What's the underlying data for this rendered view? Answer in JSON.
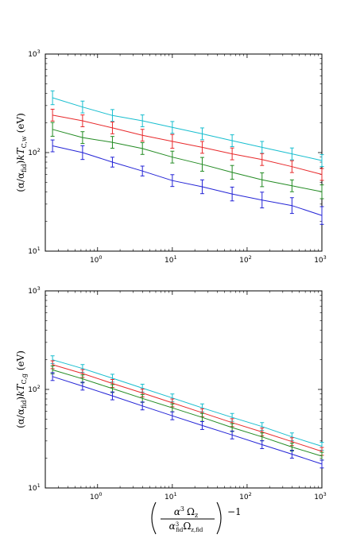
{
  "colors": {
    "cyan": "#17becf",
    "red": "#e8292b",
    "green": "#238b23",
    "blue": "#2424d6"
  },
  "chart_data": [
    {
      "type": "line",
      "ylabel": "(α/α_fid) kT_C,w (eV)",
      "xlabel": "",
      "xscale": "log",
      "yscale": "log",
      "xlim": [
        0.2,
        1000
      ],
      "ylim": [
        10,
        1000
      ],
      "x": [
        0.25,
        0.63,
        1.58,
        3.98,
        10,
        25.1,
        63.1,
        158.5,
        398,
        1000
      ],
      "series": [
        {
          "color": "cyan",
          "values": [
            360,
            290,
            238,
            210,
            180,
            155,
            132,
            113,
            97,
            83
          ],
          "err": [
            0.07,
            0.06,
            0.06,
            0.06,
            0.06,
            0.06,
            0.06,
            0.06,
            0.06,
            0.06
          ]
        },
        {
          "color": "red",
          "values": [
            240,
            210,
            178,
            150,
            130,
            113,
            97,
            85,
            72,
            60
          ],
          "err": [
            0.06,
            0.06,
            0.06,
            0.06,
            0.07,
            0.06,
            0.06,
            0.06,
            0.06,
            0.06
          ]
        },
        {
          "color": "green",
          "values": [
            172,
            142,
            127,
            110,
            90,
            76,
            63,
            53,
            46,
            40
          ],
          "err": [
            0.07,
            0.06,
            0.06,
            0.06,
            0.06,
            0.07,
            0.07,
            0.07,
            0.06,
            0.07
          ]
        },
        {
          "color": "blue",
          "values": [
            117,
            100,
            80,
            65,
            52,
            45,
            38,
            33,
            29,
            23
          ],
          "err": [
            0.06,
            0.07,
            0.05,
            0.05,
            0.06,
            0.07,
            0.07,
            0.08,
            0.08,
            0.09
          ]
        }
      ]
    },
    {
      "type": "line",
      "ylabel": "(α/α_fid) kT_C,g (eV)",
      "xlabel": "(α³ Ω_z / α³_fid Ω_z,fid)^−1",
      "xscale": "log",
      "yscale": "log",
      "xlim": [
        0.2,
        1000
      ],
      "ylim": [
        10,
        1000
      ],
      "x": [
        0.25,
        0.63,
        1.58,
        3.98,
        10,
        25.1,
        63.1,
        158.5,
        398,
        1000
      ],
      "series": [
        {
          "color": "cyan",
          "values": [
            200,
            163,
            130,
            103,
            82,
            65,
            52,
            42,
            33,
            26.5
          ],
          "err": [
            0.04,
            0.04,
            0.04,
            0.04,
            0.04,
            0.04,
            0.04,
            0.04,
            0.04,
            0.04
          ]
        },
        {
          "color": "red",
          "values": [
            178,
            145,
            115,
            92,
            73,
            58,
            46,
            37,
            29.5,
            23.5
          ],
          "err": [
            0.04,
            0.04,
            0.04,
            0.04,
            0.04,
            0.04,
            0.04,
            0.04,
            0.04,
            0.04
          ]
        },
        {
          "color": "green",
          "values": [
            158,
            128,
            102,
            81,
            65,
            52,
            41,
            33,
            26,
            21
          ],
          "err": [
            0.04,
            0.04,
            0.04,
            0.04,
            0.04,
            0.04,
            0.04,
            0.04,
            0.04,
            0.04
          ]
        },
        {
          "color": "blue",
          "values": [
            135,
            108,
            86,
            68,
            54,
            43,
            34.5,
            27.5,
            22,
            17.5
          ],
          "err": [
            0.04,
            0.04,
            0.04,
            0.04,
            0.04,
            0.04,
            0.04,
            0.04,
            0.04,
            0.04
          ]
        }
      ]
    }
  ],
  "ticks": {
    "x": [
      {
        "value": 1,
        "mant": "10",
        "exp": "0"
      },
      {
        "value": 10,
        "mant": "10",
        "exp": "1"
      },
      {
        "value": 100,
        "mant": "10",
        "exp": "2"
      },
      {
        "value": 1000,
        "mant": "10",
        "exp": "3"
      }
    ],
    "y": [
      {
        "value": 10,
        "mant": "10",
        "exp": "1"
      },
      {
        "value": 100,
        "mant": "10",
        "exp": "2"
      },
      {
        "value": 1000,
        "mant": "10",
        "exp": "3"
      }
    ]
  },
  "labels": {
    "top_ylabel": {
      "pre": "(α/α",
      "sub1": "fid",
      "mid": ")",
      "k": "kT",
      "sub2": "C,w",
      "post": " (eV)"
    },
    "bot_ylabel": {
      "pre": "(α/α",
      "sub1": "fid",
      "mid": ")",
      "k": "kT",
      "sub2": "C,g",
      "post": " (eV)"
    },
    "xlabel": {
      "num_a": "α",
      "num_exp": "3",
      "num_b": "Ω",
      "num_sub": "z",
      "den_a": "α",
      "den_exp": "3",
      "den_sub1": "fid",
      "den_b": "Ω",
      "den_sub2": "z,fid",
      "power": "−1"
    }
  }
}
